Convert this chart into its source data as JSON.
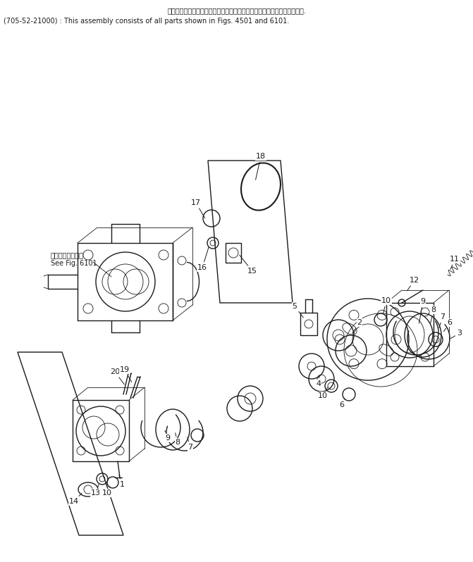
{
  "bg_color": "#ffffff",
  "line_color": "#1a1a1a",
  "fig_width": 6.71,
  "fig_height": 7.98,
  "dpi": 100,
  "header_line1": "このアセンブリの構成部品は第４５０１図および第６１０１図を含みます.",
  "header_line2": "(705-52-21000) : This assembly consists of all parts shown in Figs. 4501 and 6101.",
  "see_fig_line1": "第６１０１図参照",
  "see_fig_line2": "See Fig. 6101"
}
